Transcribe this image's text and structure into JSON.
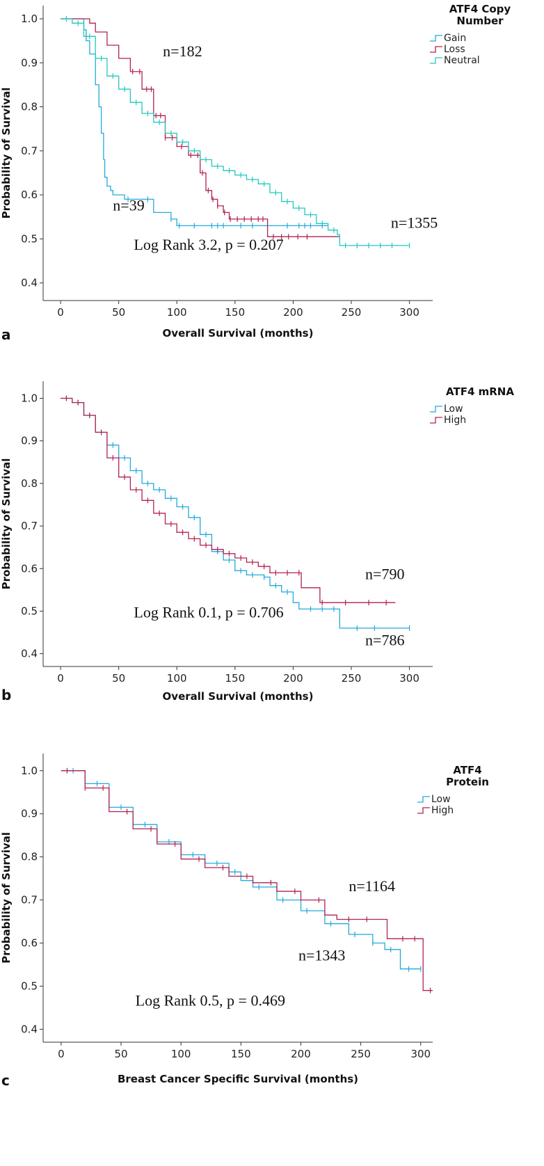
{
  "chart_data": [
    {
      "panel": "a",
      "type": "line",
      "xlabel": "Overall Survival (months)",
      "ylabel": "Probability of Survival",
      "xlim": [
        -15,
        320
      ],
      "ylim": [
        0.36,
        1.03
      ],
      "xticks": [
        0,
        50,
        100,
        150,
        200,
        250,
        300
      ],
      "yticks": [
        0.4,
        0.5,
        0.6,
        0.7,
        0.8,
        0.9,
        1.0
      ],
      "legend_title": [
        "ATF4 Copy",
        "Number"
      ],
      "legend_position": "top-right",
      "series": [
        {
          "name": "Gain",
          "color": "#22AADD",
          "x": [
            0,
            20,
            22,
            25,
            30,
            33,
            35,
            37,
            38,
            40,
            43,
            45,
            50,
            55,
            80,
            95,
            100,
            150,
            200,
            230
          ],
          "y": [
            1.0,
            0.975,
            0.95,
            0.92,
            0.85,
            0.8,
            0.74,
            0.68,
            0.64,
            0.62,
            0.61,
            0.6,
            0.6,
            0.59,
            0.56,
            0.545,
            0.53,
            0.53,
            0.53,
            0.53
          ],
          "censors": [
            58,
            75,
            95,
            102,
            115,
            130,
            135,
            140,
            155,
            165,
            195,
            205,
            210,
            215,
            225
          ]
        },
        {
          "name": "Loss",
          "color": "#B22152",
          "x": [
            0,
            20,
            25,
            30,
            40,
            50,
            60,
            70,
            80,
            90,
            100,
            110,
            120,
            125,
            130,
            135,
            140,
            145,
            150,
            160,
            175,
            178,
            200,
            240
          ],
          "y": [
            1.0,
            1.0,
            0.99,
            0.97,
            0.94,
            0.91,
            0.88,
            0.84,
            0.78,
            0.73,
            0.71,
            0.69,
            0.65,
            0.61,
            0.59,
            0.575,
            0.56,
            0.545,
            0.545,
            0.545,
            0.545,
            0.505,
            0.505,
            0.505
          ],
          "censors": [
            62,
            68,
            74,
            78,
            82,
            86,
            90,
            96,
            104,
            112,
            118,
            122,
            127,
            131,
            135,
            141,
            146,
            152,
            158,
            164,
            170,
            174,
            183,
            190,
            196,
            204,
            212
          ]
        },
        {
          "name": "Neutral",
          "color": "#22C8BE",
          "x": [
            0,
            10,
            20,
            30,
            40,
            50,
            60,
            70,
            80,
            90,
            100,
            110,
            120,
            130,
            140,
            150,
            160,
            170,
            180,
            190,
            200,
            210,
            220,
            230,
            238,
            240,
            260,
            280,
            300
          ],
          "y": [
            1.0,
            0.99,
            0.96,
            0.91,
            0.87,
            0.84,
            0.81,
            0.785,
            0.765,
            0.74,
            0.72,
            0.7,
            0.68,
            0.665,
            0.655,
            0.645,
            0.635,
            0.625,
            0.605,
            0.585,
            0.57,
            0.555,
            0.535,
            0.52,
            0.51,
            0.485,
            0.485,
            0.485,
            0.485
          ],
          "censors": [
            5,
            15,
            25,
            35,
            45,
            55,
            65,
            75,
            85,
            95,
            105,
            115,
            125,
            135,
            145,
            155,
            165,
            175,
            185,
            195,
            205,
            215,
            225,
            235,
            245,
            255,
            265,
            275,
            285,
            300
          ]
        }
      ],
      "annotations": [
        {
          "text": "n=182",
          "x": 88,
          "y": 0.915
        },
        {
          "text": "n=39",
          "x": 45,
          "y": 0.565
        },
        {
          "text": "n=1355",
          "x": 284,
          "y": 0.525
        },
        {
          "text": "Log Rank 3.2, p = 0.207",
          "x": 63,
          "y": 0.475
        }
      ]
    },
    {
      "panel": "b",
      "type": "line",
      "xlabel": "Overall Survival (months)",
      "ylabel": "Probability of Survival",
      "xlim": [
        -15,
        320
      ],
      "ylim": [
        0.37,
        1.04
      ],
      "xticks": [
        0,
        50,
        100,
        150,
        200,
        250,
        300
      ],
      "yticks": [
        0.4,
        0.5,
        0.6,
        0.7,
        0.8,
        0.9,
        1.0
      ],
      "legend_title": [
        "ATF4 mRNA"
      ],
      "legend_position": "top-right",
      "series": [
        {
          "name": "Low",
          "color": "#22AADD",
          "x": [
            0,
            10,
            20,
            30,
            40,
            50,
            60,
            70,
            80,
            90,
            100,
            110,
            120,
            130,
            140,
            150,
            160,
            175,
            180,
            190,
            200,
            205,
            210,
            220,
            238,
            240,
            260,
            300
          ],
          "y": [
            1.0,
            0.99,
            0.96,
            0.92,
            0.89,
            0.86,
            0.83,
            0.8,
            0.785,
            0.765,
            0.745,
            0.72,
            0.68,
            0.64,
            0.62,
            0.595,
            0.585,
            0.58,
            0.56,
            0.545,
            0.52,
            0.505,
            0.505,
            0.505,
            0.505,
            0.46,
            0.46,
            0.46
          ],
          "censors": [
            5,
            15,
            25,
            35,
            45,
            55,
            65,
            75,
            85,
            95,
            105,
            115,
            125,
            135,
            145,
            155,
            165,
            175,
            185,
            195,
            215,
            225,
            235,
            255,
            270,
            300
          ]
        },
        {
          "name": "High",
          "color": "#B22152",
          "x": [
            0,
            10,
            20,
            30,
            40,
            50,
            60,
            70,
            80,
            90,
            100,
            110,
            120,
            130,
            140,
            150,
            160,
            170,
            180,
            200,
            207,
            210,
            220,
            223,
            240,
            260,
            288
          ],
          "y": [
            1.0,
            0.99,
            0.96,
            0.92,
            0.86,
            0.815,
            0.785,
            0.76,
            0.73,
            0.705,
            0.685,
            0.67,
            0.655,
            0.645,
            0.635,
            0.625,
            0.615,
            0.605,
            0.59,
            0.59,
            0.555,
            0.555,
            0.555,
            0.52,
            0.52,
            0.52,
            0.52
          ],
          "censors": [
            5,
            15,
            25,
            35,
            45,
            55,
            65,
            75,
            85,
            95,
            105,
            115,
            125,
            135,
            145,
            155,
            165,
            175,
            185,
            195,
            205,
            225,
            245,
            265,
            280
          ]
        }
      ],
      "annotations": [
        {
          "text": "n=790",
          "x": 262,
          "y": 0.575
        },
        {
          "text": "n=786",
          "x": 262,
          "y": 0.42
        },
        {
          "text": "Log Rank 0.1, p = 0.706",
          "x": 63,
          "y": 0.485
        }
      ]
    },
    {
      "panel": "c",
      "type": "line",
      "xlabel": "Breast Cancer Specific Survival (months)",
      "ylabel": "Probability of Survival",
      "xlim": [
        -15,
        310
      ],
      "ylim": [
        0.37,
        1.04
      ],
      "xticks": [
        0,
        50,
        100,
        150,
        200,
        250,
        300
      ],
      "yticks": [
        0.4,
        0.5,
        0.6,
        0.7,
        0.8,
        0.9,
        1.0
      ],
      "legend_title": [
        "ATF4",
        "Protein"
      ],
      "legend_position": "top-right",
      "series": [
        {
          "name": "Low",
          "color": "#22AADD",
          "x": [
            0,
            20,
            40,
            60,
            80,
            100,
            120,
            140,
            150,
            160,
            180,
            200,
            220,
            240,
            260,
            270,
            280,
            283,
            300
          ],
          "y": [
            1.0,
            0.97,
            0.915,
            0.875,
            0.835,
            0.805,
            0.785,
            0.765,
            0.745,
            0.73,
            0.7,
            0.675,
            0.645,
            0.62,
            0.6,
            0.585,
            0.585,
            0.54,
            0.54
          ],
          "censors": [
            10,
            30,
            50,
            70,
            90,
            110,
            130,
            145,
            165,
            185,
            205,
            225,
            245,
            260,
            275,
            290,
            300
          ]
        },
        {
          "name": "High",
          "color": "#B22152",
          "x": [
            0,
            20,
            40,
            60,
            80,
            100,
            120,
            140,
            160,
            180,
            200,
            220,
            230,
            240,
            260,
            272,
            280,
            300,
            302,
            310
          ],
          "y": [
            1.0,
            0.96,
            0.905,
            0.865,
            0.83,
            0.795,
            0.775,
            0.755,
            0.74,
            0.72,
            0.7,
            0.665,
            0.655,
            0.655,
            0.655,
            0.61,
            0.61,
            0.61,
            0.49,
            0.49
          ],
          "censors": [
            5,
            20,
            35,
            55,
            75,
            95,
            115,
            135,
            155,
            175,
            195,
            215,
            240,
            255,
            285,
            295,
            308
          ]
        }
      ],
      "annotations": [
        {
          "text": "n=1164",
          "x": 240,
          "y": 0.72
        },
        {
          "text": "n=1343",
          "x": 198,
          "y": 0.56
        },
        {
          "text": "Log Rank 0.5, p = 0.469",
          "x": 62,
          "y": 0.455
        }
      ]
    }
  ],
  "panel_labels": [
    "a",
    "b",
    "c"
  ]
}
